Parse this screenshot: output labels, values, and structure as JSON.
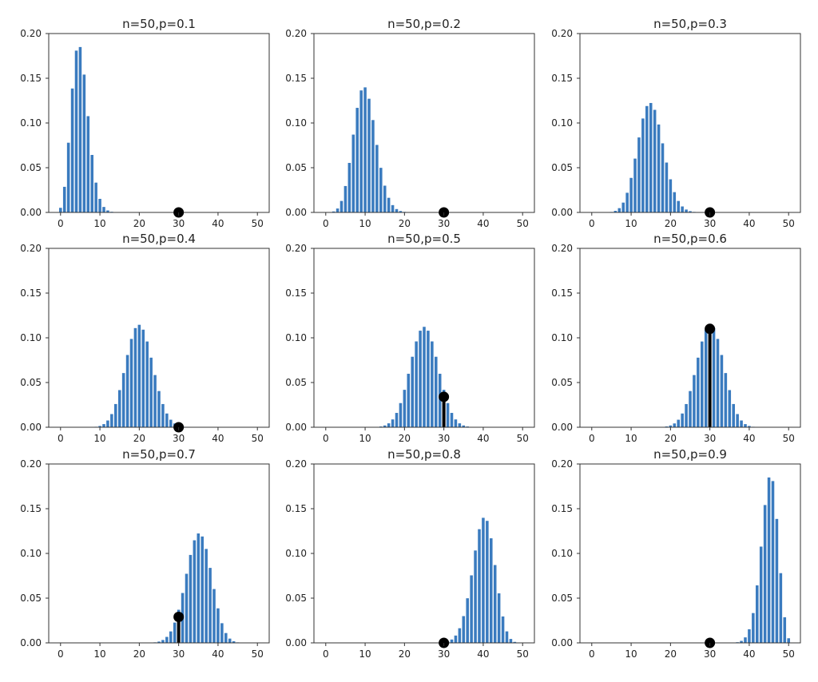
{
  "figure": {
    "highlight_k": 30,
    "bar_color": "#3a7bbf",
    "marker_color": "#000000",
    "axes_color": "#333333"
  },
  "chart_data": [
    {
      "type": "bar",
      "title": "n=50,p=0.1",
      "n": 50,
      "p": 0.1,
      "xlim": [
        -3,
        53
      ],
      "ylim": [
        0,
        0.2
      ],
      "xticks": [
        0,
        10,
        20,
        30,
        40,
        50
      ],
      "yticks": [
        0.0,
        0.05,
        0.1,
        0.15,
        0.2
      ],
      "ytick_labels": [
        "0.00",
        "0.05",
        "0.10",
        "0.15",
        "0.20"
      ],
      "marker": {
        "x": 30,
        "y": 0.0
      }
    },
    {
      "type": "bar",
      "title": "n=50,p=0.2",
      "n": 50,
      "p": 0.2,
      "xlim": [
        -3,
        53
      ],
      "ylim": [
        0,
        0.2
      ],
      "xticks": [
        0,
        10,
        20,
        30,
        40,
        50
      ],
      "yticks": [
        0.0,
        0.05,
        0.1,
        0.15,
        0.2
      ],
      "ytick_labels": [
        "0.00",
        "0.05",
        "0.10",
        "0.15",
        "0.20"
      ],
      "marker": {
        "x": 30,
        "y": 0.0
      }
    },
    {
      "type": "bar",
      "title": "n=50,p=0.3",
      "n": 50,
      "p": 0.3,
      "xlim": [
        -3,
        53
      ],
      "ylim": [
        0,
        0.2
      ],
      "xticks": [
        0,
        10,
        20,
        30,
        40,
        50
      ],
      "yticks": [
        0.0,
        0.05,
        0.1,
        0.15,
        0.2
      ],
      "ytick_labels": [
        "0.00",
        "0.05",
        "0.10",
        "0.15",
        "0.20"
      ],
      "marker": {
        "x": 30,
        "y": 0.0
      }
    },
    {
      "type": "bar",
      "title": "n=50,p=0.4",
      "n": 50,
      "p": 0.4,
      "xlim": [
        -3,
        53
      ],
      "ylim": [
        0,
        0.2
      ],
      "xticks": [
        0,
        10,
        20,
        30,
        40,
        50
      ],
      "yticks": [
        0.0,
        0.05,
        0.1,
        0.15,
        0.2
      ],
      "ytick_labels": [
        "0.00",
        "0.05",
        "0.10",
        "0.15",
        "0.20"
      ],
      "marker": {
        "x": 30,
        "y": 0.0
      }
    },
    {
      "type": "bar",
      "title": "n=50,p=0.5",
      "n": 50,
      "p": 0.5,
      "xlim": [
        -3,
        53
      ],
      "ylim": [
        0,
        0.2
      ],
      "xticks": [
        0,
        10,
        20,
        30,
        40,
        50
      ],
      "yticks": [
        0.0,
        0.05,
        0.1,
        0.15,
        0.2
      ],
      "ytick_labels": [
        "0.00",
        "0.05",
        "0.10",
        "0.15",
        "0.20"
      ],
      "marker": {
        "x": 30,
        "y": 0.034
      }
    },
    {
      "type": "bar",
      "title": "n=50,p=0.6",
      "n": 50,
      "p": 0.6,
      "xlim": [
        -3,
        53
      ],
      "ylim": [
        0,
        0.2
      ],
      "xticks": [
        0,
        10,
        20,
        30,
        40,
        50
      ],
      "yticks": [
        0.0,
        0.05,
        0.1,
        0.15,
        0.2
      ],
      "ytick_labels": [
        "0.00",
        "0.05",
        "0.10",
        "0.15",
        "0.20"
      ],
      "marker": {
        "x": 30,
        "y": 0.11
      }
    },
    {
      "type": "bar",
      "title": "n=50,p=0.7",
      "n": 50,
      "p": 0.7,
      "xlim": [
        -3,
        53
      ],
      "ylim": [
        0,
        0.2
      ],
      "xticks": [
        0,
        10,
        20,
        30,
        40,
        50
      ],
      "yticks": [
        0.0,
        0.05,
        0.1,
        0.15,
        0.2
      ],
      "ytick_labels": [
        "0.00",
        "0.05",
        "0.10",
        "0.15",
        "0.20"
      ],
      "marker": {
        "x": 30,
        "y": 0.029
      }
    },
    {
      "type": "bar",
      "title": "n=50,p=0.8",
      "n": 50,
      "p": 0.8,
      "xlim": [
        -3,
        53
      ],
      "ylim": [
        0,
        0.2
      ],
      "xticks": [
        0,
        10,
        20,
        30,
        40,
        50
      ],
      "yticks": [
        0.0,
        0.05,
        0.1,
        0.15,
        0.2
      ],
      "ytick_labels": [
        "0.00",
        "0.05",
        "0.10",
        "0.15",
        "0.20"
      ],
      "marker": {
        "x": 30,
        "y": 0.0
      }
    },
    {
      "type": "bar",
      "title": "n=50,p=0.9",
      "n": 50,
      "p": 0.9,
      "xlim": [
        -3,
        53
      ],
      "ylim": [
        0,
        0.2
      ],
      "xticks": [
        0,
        10,
        20,
        30,
        40,
        50
      ],
      "yticks": [
        0.0,
        0.05,
        0.1,
        0.15,
        0.2
      ],
      "ytick_labels": [
        "0.00",
        "0.05",
        "0.10",
        "0.15",
        "0.20"
      ],
      "marker": {
        "x": 30,
        "y": 0.0
      }
    }
  ]
}
